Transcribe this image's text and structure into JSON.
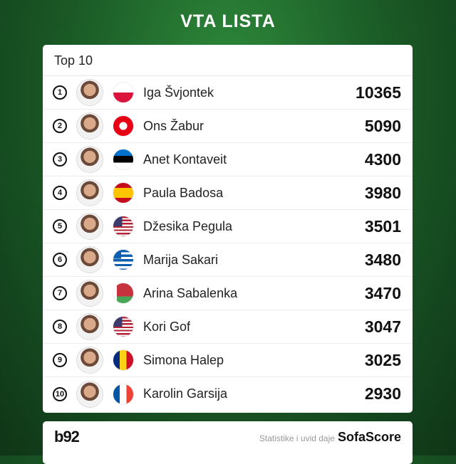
{
  "title": "VTA LISTA",
  "card": {
    "heading": "Top 10"
  },
  "players": [
    {
      "rank": "1",
      "name": "Iga Švjontek",
      "points": "10365",
      "flag": "poland"
    },
    {
      "rank": "2",
      "name": "Ons Žabur",
      "points": "5090",
      "flag": "tunisia"
    },
    {
      "rank": "3",
      "name": "Anet Kontaveit",
      "points": "4300",
      "flag": "estonia"
    },
    {
      "rank": "4",
      "name": "Paula Badosa",
      "points": "3980",
      "flag": "spain"
    },
    {
      "rank": "5",
      "name": "Džesika Pegula",
      "points": "3501",
      "flag": "usa"
    },
    {
      "rank": "6",
      "name": "Marija Sakari",
      "points": "3480",
      "flag": "greece"
    },
    {
      "rank": "7",
      "name": "Arina Sabalenka",
      "points": "3470",
      "flag": "belarus"
    },
    {
      "rank": "8",
      "name": "Kori Gof",
      "points": "3047",
      "flag": "usa"
    },
    {
      "rank": "9",
      "name": "Simona Halep",
      "points": "3025",
      "flag": "romania"
    },
    {
      "rank": "10",
      "name": "Karolin Garsija",
      "points": "2930",
      "flag": "france"
    }
  ],
  "footer": {
    "logo": "b92",
    "credit": "Statistike i uvid daje",
    "brand": "SofaScore"
  }
}
